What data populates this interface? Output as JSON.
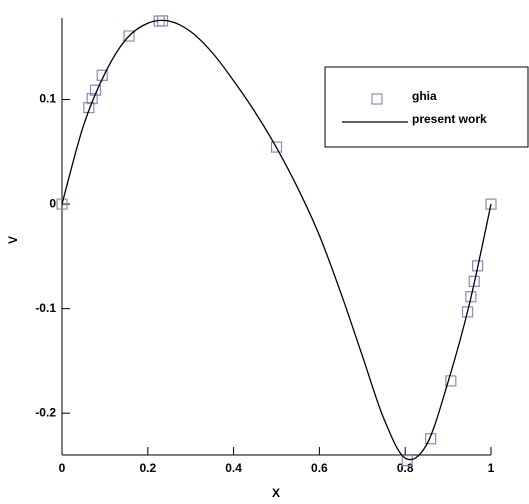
{
  "chart_data": {
    "type": "line",
    "x_label": "X",
    "y_label": "V",
    "xlim": [
      0,
      1
    ],
    "ylim": [
      -0.24,
      0.178
    ],
    "xticks": [
      0,
      0.2,
      0.4,
      0.6,
      0.8,
      1
    ],
    "yticks": [
      -0.2,
      -0.1,
      0,
      0.1
    ],
    "legend": "upper right",
    "series": [
      {
        "name": "ghia",
        "color": "#8a8ab8",
        "marker": "square",
        "x": [
          0,
          0.0625,
          0.0703,
          0.0781,
          0.0938,
          0.1563,
          0.2266,
          0.2344,
          0.5,
          0.8047,
          0.8594,
          0.9063,
          0.9453,
          0.9531,
          0.9609,
          0.9688,
          1
        ],
        "values": [
          0,
          0.09233,
          0.10091,
          0.1089,
          0.12317,
          0.16077,
          0.17507,
          0.17527,
          0.05454,
          -0.24533,
          -0.22445,
          -0.16914,
          -0.10313,
          -0.08864,
          -0.07391,
          -0.05906,
          0
        ]
      },
      {
        "name": "present work",
        "color": "#000000",
        "marker": "none",
        "x": [
          0,
          0.05,
          0.1,
          0.15,
          0.2,
          0.25,
          0.3,
          0.35,
          0.4,
          0.45,
          0.5,
          0.55,
          0.6,
          0.65,
          0.7,
          0.75,
          0.8,
          0.85,
          0.9,
          0.95,
          1
        ],
        "values": [
          0,
          0.075,
          0.125,
          0.158,
          0.173,
          0.175,
          0.165,
          0.145,
          0.118,
          0.088,
          0.054,
          0.015,
          -0.03,
          -0.085,
          -0.145,
          -0.205,
          -0.243,
          -0.23,
          -0.17,
          -0.095,
          0
        ]
      }
    ]
  }
}
